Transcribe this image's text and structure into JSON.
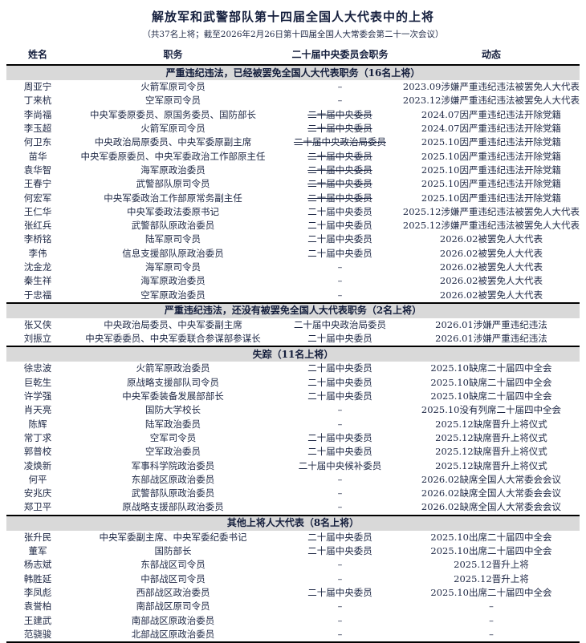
{
  "title": "解放军和武警部队第十四届全国人大代表中的上将",
  "subtitle": "（共37名上将；截至2026年2月26日第十四届全国人大常委会第二十一次会议）",
  "columns": [
    "姓名",
    "职务",
    "二十届中央委员会职务",
    "动态"
  ],
  "banner_bg_color": "#d9d9d9",
  "text_color": "#1e2845",
  "sections": [
    {
      "header": "严重违纪违法，已经被罢免全国人大代表职务（16名上将）",
      "rows": [
        {
          "name": "周亚宁",
          "position": "火箭军原司令员",
          "committee": "–",
          "struck": false,
          "status": "2023.09涉嫌严重违纪违法被罢免人大代表"
        },
        {
          "name": "丁来杭",
          "position": "空军原司令员",
          "committee": "–",
          "struck": false,
          "status": "2023.12涉嫌严重违纪违法被罢免人大代表"
        },
        {
          "name": "李尚福",
          "position": "中央军委原委员、原国务委员、国防部长",
          "committee": "二十届中央委员",
          "struck": true,
          "status": "2024.07因严重违纪违法开除党籍"
        },
        {
          "name": "李玉超",
          "position": "火箭军原司令员",
          "committee": "二十届中央委员",
          "struck": true,
          "status": "2024.07因严重违纪违法开除党籍"
        },
        {
          "name": "何卫东",
          "position": "中央政治局原委员、中央军委原副主席",
          "committee": "二十届中央政治局委员",
          "struck": true,
          "status": "2025.10因严重违纪违法开除党籍"
        },
        {
          "name": "苗华",
          "position": "中央军委原委员、中央军委政治工作部原主任",
          "committee": "二十届中央委员",
          "struck": true,
          "status": "2025.10因严重违纪违法开除党籍"
        },
        {
          "name": "袁华智",
          "position": "海军原政治委员",
          "committee": "二十届中央委员",
          "struck": true,
          "status": "2025.10因严重违纪违法开除党籍"
        },
        {
          "name": "王春宁",
          "position": "武警部队原司令员",
          "committee": "二十届中央委员",
          "struck": true,
          "status": "2025.10因严重违纪违法开除党籍"
        },
        {
          "name": "何宏军",
          "position": "中央军委政治工作部原常务副主任",
          "committee": "二十届中央委员",
          "struck": true,
          "status": "2025.10因严重违纪违法开除党籍"
        },
        {
          "name": "王仁华",
          "position": "中央军委政法委原书记",
          "committee": "二十届中央委员",
          "struck": false,
          "status": "2025.12涉嫌严重违纪违法被罢免人大代表"
        },
        {
          "name": "张红兵",
          "position": "武警部队原政治委员",
          "committee": "二十届中央委员",
          "struck": false,
          "status": "2025.12涉嫌严重违纪违法被罢免人大代表"
        },
        {
          "name": "李桥铭",
          "position": "陆军原司令员",
          "committee": "二十届中央委员",
          "struck": false,
          "status": "2026.02被罢免人大代表"
        },
        {
          "name": "李伟",
          "position": "信息支援部队原政治委员",
          "committee": "二十届中央委员",
          "struck": false,
          "status": "2026.02被罢免人大代表"
        },
        {
          "name": "沈金龙",
          "position": "海军原司令员",
          "committee": "–",
          "struck": false,
          "status": "2026.02被罢免人大代表"
        },
        {
          "name": "秦生祥",
          "position": "海军原政治委员",
          "committee": "–",
          "struck": false,
          "status": "2026.02被罢免人大代表"
        },
        {
          "name": "于忠福",
          "position": "空军原政治委员",
          "committee": "–",
          "struck": false,
          "status": "2026.02被罢免人大代表"
        }
      ]
    },
    {
      "header": "严重违纪违法，还没有被罢免全国人大代表职务（2名上将）",
      "rows": [
        {
          "name": "张又侠",
          "position": "中央政治局委员、中央军委副主席",
          "committee": "二十届中央政治局委员",
          "struck": false,
          "status": "2026.01涉嫌严重违纪违法"
        },
        {
          "name": "刘振立",
          "position": "中央军委委员、中央军委联合参谋部参谋长",
          "committee": "二十届中央委员",
          "struck": false,
          "status": "2026.01涉嫌严重违纪违法"
        }
      ]
    },
    {
      "header": "失踪（11名上将）",
      "rows": [
        {
          "name": "徐忠波",
          "position": "火箭军原政治委员",
          "committee": "二十届中央委员",
          "struck": false,
          "status": "2025.10缺席二十届四中全会"
        },
        {
          "name": "巨乾生",
          "position": "原战略支援部队司令员",
          "committee": "二十届中央委员",
          "struck": false,
          "status": "2025.10缺席二十届四中全会"
        },
        {
          "name": "许学强",
          "position": "中央军委装备发展部部长",
          "committee": "二十届中央委员",
          "struck": false,
          "status": "2025.10缺席二十届四中全会"
        },
        {
          "name": "肖天亮",
          "position": "国防大学校长",
          "committee": "–",
          "struck": false,
          "status": "2025.10没有列席二十届四中全会"
        },
        {
          "name": "陈辉",
          "position": "陆军政治委员",
          "committee": "–",
          "struck": false,
          "status": "2025.12缺席晋升上将仪式"
        },
        {
          "name": "常丁求",
          "position": "空军司令员",
          "committee": "二十届中央委员",
          "struck": false,
          "status": "2025.12缺席晋升上将仪式"
        },
        {
          "name": "郭普校",
          "position": "空军政治委员",
          "committee": "二十届中央委员",
          "struck": false,
          "status": "2025.12缺席晋升上将仪式"
        },
        {
          "name": "凌焕新",
          "position": "军事科学院政治委员",
          "committee": "二十届中央候补委员",
          "struck": false,
          "status": "2025.12缺席晋升上将仪式"
        },
        {
          "name": "何平",
          "position": "东部战区原政治委员",
          "committee": "–",
          "struck": false,
          "status": "2026.02缺席全国人大常委会会议"
        },
        {
          "name": "安兆庆",
          "position": "武警部队原政治委员",
          "committee": "–",
          "struck": false,
          "status": "2026.02缺席全国人大常委会会议"
        },
        {
          "name": "郑卫平",
          "position": "原战略支援部队政治委员",
          "committee": "–",
          "struck": false,
          "status": "2026.02缺席全国人大常委会会议"
        }
      ]
    },
    {
      "header": "其他上将人大代表（8名上将）",
      "rows": [
        {
          "name": "张升民",
          "position": "中央军委副主席、中央军委纪委书记",
          "committee": "二十届中央委员",
          "struck": false,
          "status": "2025.10出席二十届四中全会"
        },
        {
          "name": "董军",
          "position": "国防部长",
          "committee": "二十届中央委员",
          "struck": false,
          "status": "2025.10出席二十届四中全会"
        },
        {
          "name": "杨志斌",
          "position": "东部战区司令员",
          "committee": "–",
          "struck": false,
          "status": "2025.12晋升上将"
        },
        {
          "name": "韩胜延",
          "position": "中部战区司令员",
          "committee": "–",
          "struck": false,
          "status": "2025.12晋升上将"
        },
        {
          "name": "李凤彪",
          "position": "西部战区政治委员",
          "committee": "二十届中央委员",
          "struck": false,
          "status": "2025.10出席二十届四中全会"
        },
        {
          "name": "袁誉柏",
          "position": "南部战区原司令员",
          "committee": "–",
          "struck": false,
          "status": "–"
        },
        {
          "name": "王建武",
          "position": "南部战区原政治委员",
          "committee": "–",
          "struck": false,
          "status": "–"
        },
        {
          "name": "范骁骏",
          "position": "北部战区原政治委员",
          "committee": "–",
          "struck": false,
          "status": "–"
        }
      ]
    }
  ]
}
